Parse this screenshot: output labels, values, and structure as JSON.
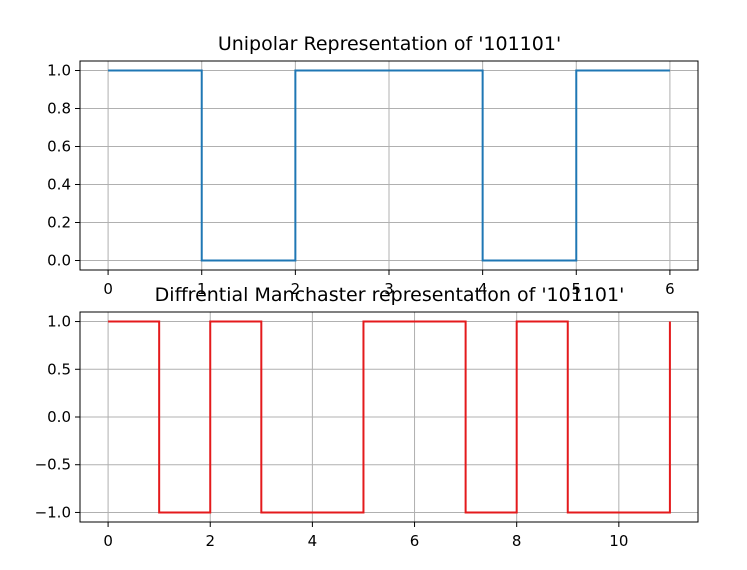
{
  "chart_data": [
    {
      "type": "line",
      "step": "post",
      "title": "Unipolar Representation of '101101'",
      "xlabel": "",
      "ylabel": "",
      "color": "#1f77b4",
      "grid": true,
      "xlim": [
        -0.3,
        6.3
      ],
      "ylim": [
        -0.05,
        1.05
      ],
      "xticks": [
        0,
        1,
        2,
        3,
        4,
        5,
        6
      ],
      "xtick_labels": [
        "0",
        "1",
        "2",
        "3",
        "4",
        "5",
        "6"
      ],
      "yticks": [
        0.0,
        0.2,
        0.4,
        0.6,
        0.8,
        1.0
      ],
      "ytick_labels": [
        "0.0",
        "0.2",
        "0.4",
        "0.6",
        "0.8",
        "1.0"
      ],
      "x": [
        0,
        1,
        2,
        3,
        4,
        5,
        6
      ],
      "y": [
        1,
        0,
        1,
        1,
        0,
        1,
        1
      ]
    },
    {
      "type": "line",
      "step": "post",
      "title": "Diffrential Manchaster representation of '101101'",
      "xlabel": "",
      "ylabel": "",
      "color": "#e41a1c",
      "grid": true,
      "xlim": [
        -0.55,
        11.55
      ],
      "ylim": [
        -1.1,
        1.1
      ],
      "xticks": [
        0,
        2,
        4,
        6,
        8,
        10
      ],
      "xtick_labels": [
        "0",
        "2",
        "4",
        "6",
        "8",
        "10"
      ],
      "yticks": [
        -1.0,
        -0.5,
        0.0,
        0.5,
        1.0
      ],
      "ytick_labels": [
        "−1.0",
        "−0.5",
        "0.0",
        "0.5",
        "1.0"
      ],
      "x": [
        0,
        1,
        2,
        3,
        4,
        5,
        6,
        7,
        8,
        9,
        10,
        11
      ],
      "y": [
        1,
        -1,
        1,
        -1,
        -1,
        1,
        1,
        -1,
        1,
        -1,
        -1,
        1
      ]
    }
  ]
}
